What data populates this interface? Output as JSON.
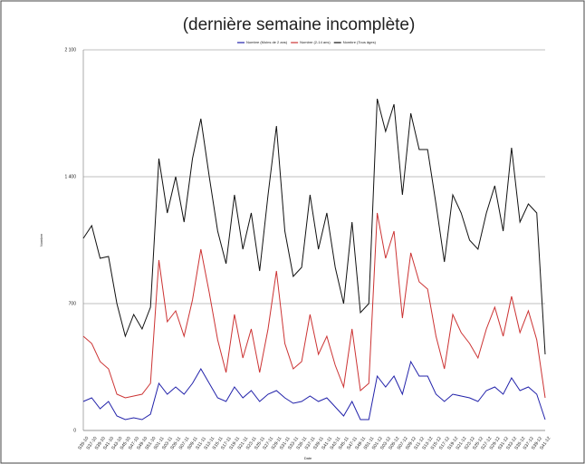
{
  "chart_data": {
    "type": "line",
    "title": "(dernière semaine incomplète)",
    "xlabel": "Date",
    "ylabel": "Nombre",
    "categories": [
      "S35-10",
      "S37-10",
      "S39-10",
      "S41-10",
      "S43-10",
      "S45-10",
      "S47-10",
      "S49-10",
      "S51-10",
      "S01-11",
      "S03-11",
      "S05-11",
      "S07-11",
      "S09-11",
      "S11-11",
      "S13-11",
      "S15-11",
      "S17-11",
      "S19-11",
      "S21-11",
      "S23-11",
      "S25-11",
      "S27-11",
      "S29-11",
      "S31-11",
      "S33-11",
      "S35-11",
      "S37-11",
      "S39-11",
      "S41-11",
      "S43-11",
      "S45-11",
      "S47-11",
      "S49-11",
      "S51-11",
      "S01-12",
      "S03-12",
      "S05-12",
      "S07-12",
      "S09-12",
      "S11-12",
      "S13-12",
      "S15-12",
      "S17-12",
      "S19-12",
      "S21-12",
      "S23-12",
      "S25-12",
      "S27-12",
      "S29-12",
      "S31-12",
      "S33-12",
      "S35-12",
      "S37-12",
      "S39-12",
      "S41-12"
    ],
    "series": [
      {
        "name": "Nombre (Moins de 2 ans)",
        "color": "#2222aa",
        "values": [
          160,
          180,
          120,
          160,
          80,
          60,
          70,
          60,
          90,
          260,
          200,
          240,
          200,
          260,
          340,
          260,
          180,
          160,
          240,
          180,
          220,
          160,
          200,
          220,
          180,
          150,
          160,
          190,
          160,
          180,
          130,
          80,
          160,
          60,
          60,
          300,
          240,
          300,
          200,
          380,
          300,
          300,
          200,
          160,
          200,
          190,
          180,
          160,
          220,
          240,
          200,
          290,
          220,
          240,
          200,
          60
        ]
      },
      {
        "name": "Nombre (2-14 ans)",
        "color": "#cc3333",
        "values": [
          520,
          480,
          380,
          340,
          200,
          180,
          190,
          200,
          260,
          940,
          600,
          660,
          520,
          720,
          1000,
          760,
          500,
          320,
          640,
          400,
          560,
          320,
          560,
          880,
          480,
          340,
          380,
          640,
          420,
          520,
          360,
          240,
          560,
          220,
          260,
          1200,
          950,
          1100,
          620,
          980,
          820,
          780,
          520,
          340,
          640,
          540,
          480,
          400,
          560,
          680,
          520,
          740,
          540,
          660,
          500,
          180
        ]
      },
      {
        "name": "Nombre (Tous âges)",
        "color": "#111111",
        "values": [
          1060,
          1130,
          950,
          960,
          700,
          520,
          640,
          560,
          680,
          1500,
          1200,
          1400,
          1150,
          1500,
          1720,
          1400,
          1100,
          920,
          1300,
          1000,
          1200,
          880,
          1300,
          1680,
          1100,
          850,
          900,
          1300,
          1000,
          1200,
          900,
          700,
          1150,
          650,
          700,
          1830,
          1650,
          1800,
          1300,
          1750,
          1550,
          1550,
          1250,
          930,
          1300,
          1200,
          1050,
          1000,
          1200,
          1350,
          1100,
          1560,
          1150,
          1250,
          1200,
          420
        ]
      }
    ],
    "ylim": [
      0,
      2100
    ],
    "yticks": [
      0,
      700,
      {
        "value": 1400,
        "label": "1 400"
      },
      {
        "value": 2100,
        "label": "2 100"
      }
    ],
    "grid": true
  }
}
